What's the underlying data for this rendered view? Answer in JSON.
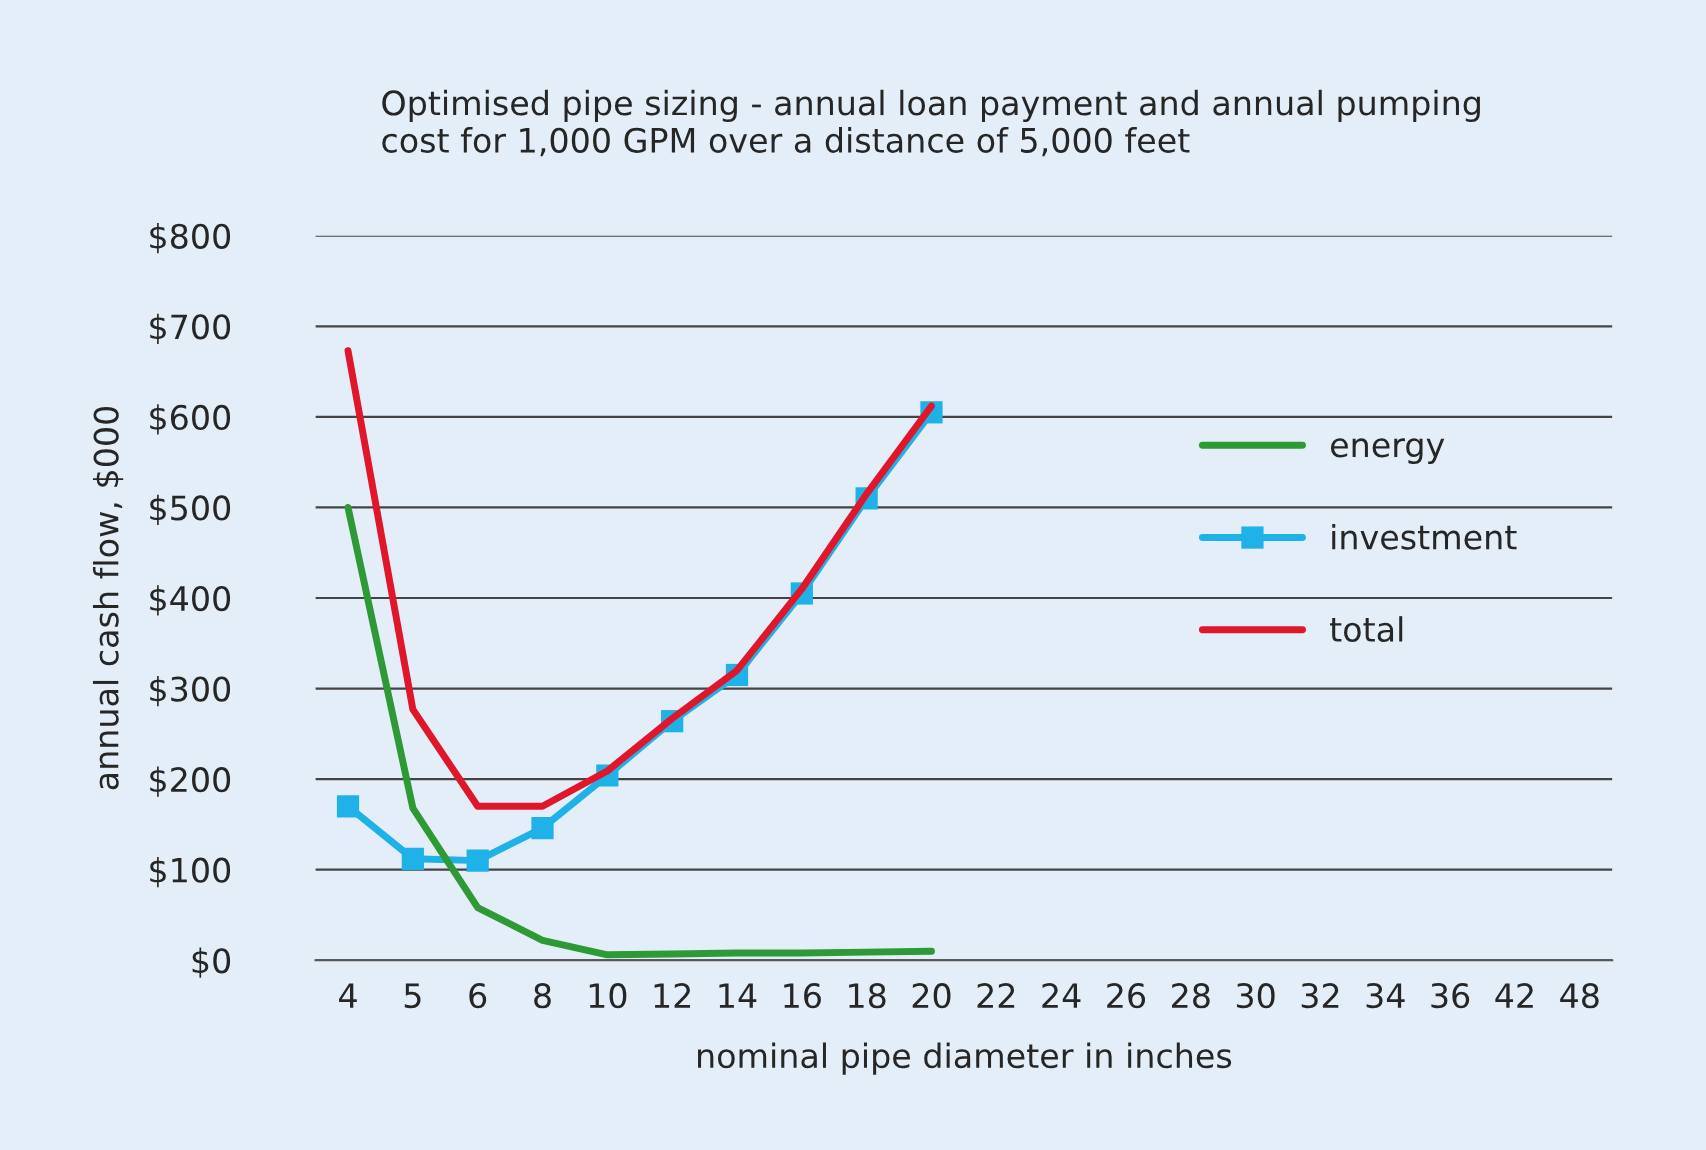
{
  "chart_data": {
    "type": "line",
    "title": "Optimised pipe sizing - annual loan payment and annual pumping\ncost for 1,000 GPM over a distance of 5,000 feet",
    "xlabel": "nominal pipe diameter in inches",
    "ylabel": "annual cash flow, $000",
    "categories": [
      "4",
      "5",
      "6",
      "8",
      "10",
      "12",
      "14",
      "16",
      "18",
      "20",
      "22",
      "24",
      "26",
      "28",
      "30",
      "32",
      "34",
      "36",
      "42",
      "48"
    ],
    "series": [
      {
        "name": "energy",
        "color": "#2e9a35",
        "marker": "none",
        "values": [
          500,
          168,
          58,
          22,
          6,
          7,
          8,
          8,
          9,
          10,
          null,
          null,
          null,
          null,
          null,
          null,
          null,
          null,
          null,
          null
        ]
      },
      {
        "name": "investment",
        "color": "#1fb2e8",
        "marker": "square",
        "values": [
          170,
          112,
          110,
          146,
          204,
          264,
          315,
          405,
          510,
          605,
          null,
          null,
          null,
          null,
          null,
          null,
          null,
          null,
          null,
          null
        ]
      },
      {
        "name": "total",
        "color": "#e0162b",
        "marker": "none",
        "values": [
          673,
          277,
          170,
          170,
          209,
          267,
          320,
          410,
          515,
          612,
          null,
          null,
          null,
          null,
          null,
          null,
          null,
          null,
          null,
          null
        ]
      }
    ],
    "ylim": [
      0,
      800
    ],
    "yticks": [
      {
        "value": 0,
        "label": "$0"
      },
      {
        "value": 100,
        "label": "$100"
      },
      {
        "value": 200,
        "label": "$200"
      },
      {
        "value": 300,
        "label": "$300"
      },
      {
        "value": 400,
        "label": "$400"
      },
      {
        "value": 500,
        "label": "$500"
      },
      {
        "value": 600,
        "label": "$600"
      },
      {
        "value": 700,
        "label": "$700"
      },
      {
        "value": 800,
        "label": "$800"
      }
    ],
    "grid": "y",
    "legend": "right",
    "line_style": "solid"
  }
}
